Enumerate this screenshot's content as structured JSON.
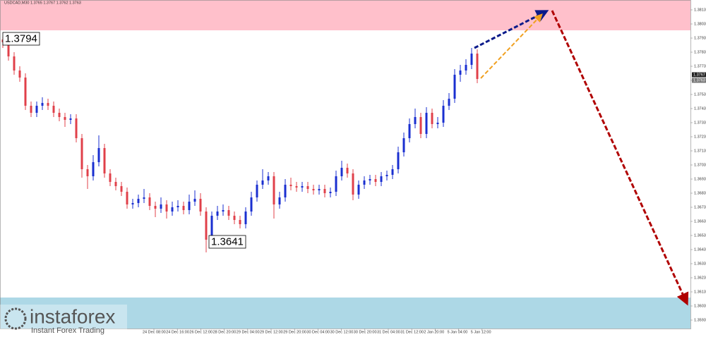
{
  "chart_data": {
    "type": "candlestick",
    "title": "USDCAD,M30 1.3765 1.3767 1.3762 1.3763",
    "ylim": [
      1.3587,
      1.382
    ],
    "yticks": [
      1.3813,
      1.3803,
      1.3793,
      1.3783,
      1.3773,
      1.3763,
      1.3753,
      1.3743,
      1.3733,
      1.3723,
      1.3713,
      1.3703,
      1.3693,
      1.3683,
      1.3673,
      1.3663,
      1.3653,
      1.3643,
      1.3633,
      1.3623,
      1.3613,
      1.3603,
      1.3593
    ],
    "x_tick_labels": [
      "24 Dec 08:00",
      "24 Dec 16:00",
      "26 Dec 12:00",
      "28 Dec 20:00",
      "29 Dec 04:00",
      "29 Dec 12:00",
      "29 Dec 20:00",
      "30 Dec 04:00",
      "30 Dec 12:00",
      "30 Dec 20:00",
      "31 Dec 04:00",
      "31 Dec 12:00",
      "2 Jan 20:00",
      "5 Jan 04:00",
      "5 Jan 12:00"
    ],
    "up_color": "#1a2fd0",
    "down_color": "#e0404a",
    "zones": [
      {
        "from": 1.37985,
        "to": 1.382,
        "color": "#ffc0cb"
      },
      {
        "from": 1.3587,
        "to": 1.3609,
        "color": "#add8e6"
      }
    ],
    "annotations": [
      {
        "value": 1.3794
      },
      {
        "value": 1.3641
      }
    ],
    "price_tags": [
      {
        "value": 1.3767
      },
      {
        "value": 1.3763
      }
    ],
    "ohlc": [
      [
        1.3792,
        1.3794,
        1.3786,
        1.379
      ],
      [
        1.379,
        1.3792,
        1.3777,
        1.378
      ],
      [
        1.378,
        1.3783,
        1.3767,
        1.377
      ],
      [
        1.377,
        1.3773,
        1.3762,
        1.3765
      ],
      [
        1.3765,
        1.3768,
        1.3742,
        1.3745
      ],
      [
        1.3745,
        1.3748,
        1.3737,
        1.374
      ],
      [
        1.374,
        1.3748,
        1.3737,
        1.3745
      ],
      [
        1.3745,
        1.3751,
        1.3742,
        1.3747
      ],
      [
        1.3747,
        1.375,
        1.3742,
        1.3745
      ],
      [
        1.3745,
        1.3748,
        1.3737,
        1.374
      ],
      [
        1.374,
        1.3743,
        1.3734,
        1.3737
      ],
      [
        1.3737,
        1.374,
        1.373,
        1.3735
      ],
      [
        1.3735,
        1.3739,
        1.3732,
        1.3736
      ],
      [
        1.3736,
        1.3739,
        1.3719,
        1.3722
      ],
      [
        1.3722,
        1.3725,
        1.3694,
        1.37
      ],
      [
        1.37,
        1.3703,
        1.3686,
        1.3695
      ],
      [
        1.3695,
        1.371,
        1.3692,
        1.3705
      ],
      [
        1.3705,
        1.3724,
        1.3702,
        1.3715
      ],
      [
        1.3715,
        1.3718,
        1.3694,
        1.3697
      ],
      [
        1.3697,
        1.37,
        1.3688,
        1.3691
      ],
      [
        1.3691,
        1.3694,
        1.3685,
        1.3688
      ],
      [
        1.3688,
        1.3691,
        1.3681,
        1.3684
      ],
      [
        1.3684,
        1.3687,
        1.3672,
        1.3675
      ],
      [
        1.3675,
        1.3679,
        1.3672,
        1.3676
      ],
      [
        1.3676,
        1.3682,
        1.3673,
        1.3679
      ],
      [
        1.3679,
        1.3686,
        1.3676,
        1.368
      ],
      [
        1.368,
        1.3683,
        1.3671,
        1.3674
      ],
      [
        1.3674,
        1.3677,
        1.3666,
        1.3672
      ],
      [
        1.3672,
        1.368,
        1.3669,
        1.3675
      ],
      [
        1.3675,
        1.3678,
        1.3665,
        1.367
      ],
      [
        1.367,
        1.3677,
        1.3667,
        1.3673
      ],
      [
        1.3673,
        1.3678,
        1.367,
        1.3674
      ],
      [
        1.3674,
        1.3677,
        1.3668,
        1.3671
      ],
      [
        1.3671,
        1.3682,
        1.3668,
        1.3677
      ],
      [
        1.3677,
        1.3685,
        1.3674,
        1.3679
      ],
      [
        1.3679,
        1.3683,
        1.3667,
        1.367
      ],
      [
        1.367,
        1.3673,
        1.3641,
        1.365
      ],
      [
        1.365,
        1.367,
        1.3647,
        1.3667
      ],
      [
        1.3667,
        1.3674,
        1.3664,
        1.367
      ],
      [
        1.367,
        1.3675,
        1.3667,
        1.3671
      ],
      [
        1.3671,
        1.3674,
        1.3664,
        1.3667
      ],
      [
        1.3667,
        1.367,
        1.3661,
        1.3664
      ],
      [
        1.3664,
        1.3667,
        1.3658,
        1.3661
      ],
      [
        1.3661,
        1.3673,
        1.3658,
        1.367
      ],
      [
        1.367,
        1.3684,
        1.3667,
        1.368
      ],
      [
        1.368,
        1.3692,
        1.3677,
        1.3689
      ],
      [
        1.3689,
        1.37,
        1.3686,
        1.3692
      ],
      [
        1.3692,
        1.3698,
        1.3689,
        1.3695
      ],
      [
        1.3695,
        1.3698,
        1.3665,
        1.3675
      ],
      [
        1.3675,
        1.3684,
        1.3672,
        1.368
      ],
      [
        1.368,
        1.3693,
        1.3677,
        1.3689
      ],
      [
        1.3689,
        1.3694,
        1.3685,
        1.3688
      ],
      [
        1.3688,
        1.3691,
        1.3684,
        1.3687
      ],
      [
        1.3687,
        1.3691,
        1.3684,
        1.3688
      ],
      [
        1.3688,
        1.3691,
        1.3683,
        1.3686
      ],
      [
        1.3686,
        1.3689,
        1.3682,
        1.3685
      ],
      [
        1.3685,
        1.3689,
        1.3682,
        1.3686
      ],
      [
        1.3686,
        1.3689,
        1.368,
        1.3683
      ],
      [
        1.3683,
        1.3687,
        1.368,
        1.3684
      ],
      [
        1.3684,
        1.3699,
        1.3681,
        1.3695
      ],
      [
        1.3695,
        1.3706,
        1.3692,
        1.3701
      ],
      [
        1.3701,
        1.3704,
        1.3694,
        1.3697
      ],
      [
        1.3697,
        1.37,
        1.3678,
        1.3682
      ],
      [
        1.3682,
        1.3692,
        1.3679,
        1.3689
      ],
      [
        1.3689,
        1.3695,
        1.3686,
        1.3692
      ],
      [
        1.3692,
        1.3696,
        1.3689,
        1.3693
      ],
      [
        1.3693,
        1.3696,
        1.3688,
        1.3691
      ],
      [
        1.3691,
        1.3698,
        1.3688,
        1.3695
      ],
      [
        1.3695,
        1.3699,
        1.3692,
        1.3696
      ],
      [
        1.3696,
        1.3703,
        1.3693,
        1.37
      ],
      [
        1.37,
        1.3716,
        1.3697,
        1.3712
      ],
      [
        1.3712,
        1.3726,
        1.3709,
        1.3722
      ],
      [
        1.3722,
        1.3736,
        1.3719,
        1.3732
      ],
      [
        1.3732,
        1.3743,
        1.3729,
        1.3737
      ],
      [
        1.3737,
        1.374,
        1.3722,
        1.3725
      ],
      [
        1.3725,
        1.3744,
        1.3722,
        1.374
      ],
      [
        1.374,
        1.3743,
        1.3729,
        1.3732
      ],
      [
        1.3732,
        1.3737,
        1.3729,
        1.3733
      ],
      [
        1.3733,
        1.3749,
        1.373,
        1.3745
      ],
      [
        1.3745,
        1.3754,
        1.3742,
        1.375
      ],
      [
        1.375,
        1.3771,
        1.3747,
        1.3767
      ],
      [
        1.3767,
        1.3774,
        1.3762,
        1.377
      ],
      [
        1.377,
        1.3778,
        1.3767,
        1.3774
      ],
      [
        1.3774,
        1.3786,
        1.3771,
        1.3782
      ],
      [
        1.3782,
        1.3785,
        1.3761,
        1.3764
      ]
    ],
    "watermark": {
      "brand": "instaforex",
      "tagline": "Instant Forex Trading"
    }
  }
}
